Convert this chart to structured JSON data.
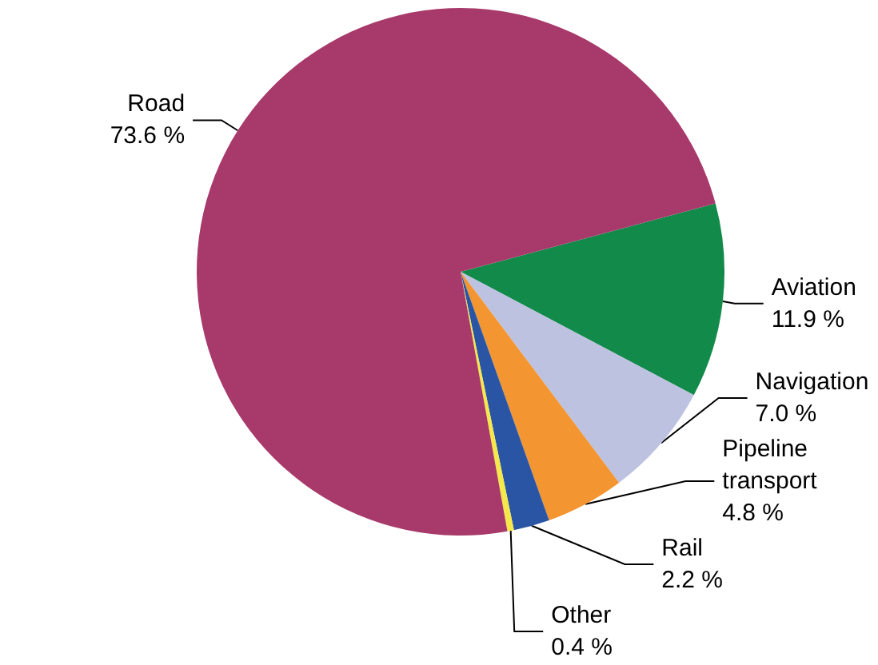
{
  "chart_data": {
    "type": "pie",
    "categories": [
      "Aviation",
      "Navigation",
      "Pipeline transport",
      "Rail",
      "Other",
      "Road"
    ],
    "values": [
      11.9,
      7.0,
      4.8,
      2.2,
      0.4,
      73.6
    ],
    "value_labels": [
      "11.9 %",
      "7.0 %",
      "4.8 %",
      "2.2 %",
      "0.4 %",
      "73.6 %"
    ],
    "colors": [
      "#128a4a",
      "#bcc2e0",
      "#f39530",
      "#2a55a4",
      "#f5e84a",
      "#a83a6b"
    ],
    "legend": false
  }
}
